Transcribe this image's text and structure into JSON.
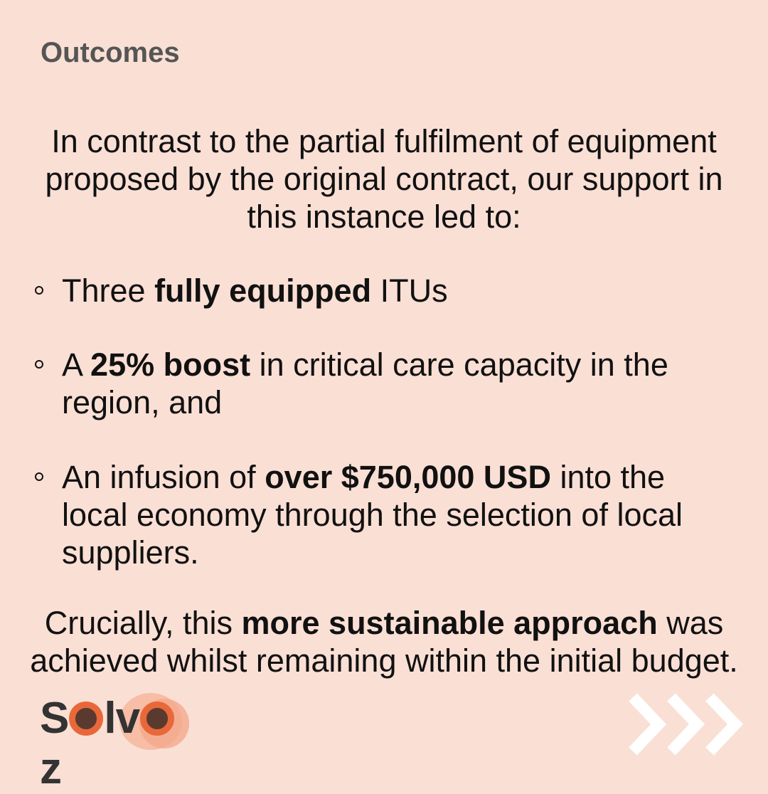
{
  "heading": "Outcomes",
  "intro": {
    "lines": [
      "In contrast to the partial fulfilment of equipment",
      "proposed by the original contract, our support in",
      "this instance led to:"
    ]
  },
  "bullets": [
    {
      "pre": "Three ",
      "bold": "fully equipped",
      "post": " ITUs",
      "line2": ""
    },
    {
      "pre": "A ",
      "bold": "25% boost",
      "post": " in critical care capacity in the",
      "line2": "region, and"
    },
    {
      "pre": "An infusion of ",
      "bold": "over $750,000 USD",
      "post": " into the",
      "line2": "local economy through the selection of local",
      "line3": "suppliers."
    }
  ],
  "closing": {
    "pre": "Crucially, this ",
    "bold": "more sustainable approach",
    "post": " was",
    "line2": "achieved whilst remaining within the initial budget."
  },
  "logo": {
    "part1": "S",
    "part2": "lv",
    "part3": "z",
    "accent_color": "#e8683a"
  },
  "colors": {
    "background": "#fadfd5",
    "heading": "#555555",
    "text": "#111111"
  }
}
